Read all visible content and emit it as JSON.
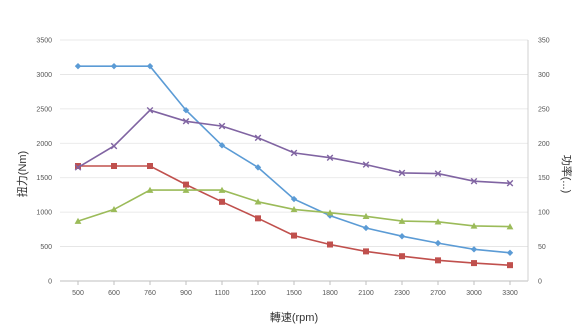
{
  "chart_data": {
    "type": "line",
    "title": "",
    "xlabel": "轉速(rpm)",
    "ylabel": "扭力(Nm)",
    "y2label": "功率(...)",
    "categories": [
      "500",
      "600",
      "760",
      "900",
      "1100",
      "1200",
      "1500",
      "1800",
      "2100",
      "2300",
      "2700",
      "3000",
      "3300"
    ],
    "ylim": [
      0,
      3500
    ],
    "y_ticks": [
      0,
      500,
      1000,
      1500,
      2000,
      2500,
      3000,
      3500
    ],
    "y2lim": [
      0,
      350
    ],
    "y2_ticks": [
      0,
      50,
      100,
      150,
      200,
      250,
      300,
      350
    ],
    "grid": "horizontal",
    "legend": "none",
    "series": [
      {
        "axis": "left",
        "color": "#5b9bd5",
        "marker": "diamond",
        "values": [
          3120,
          3120,
          3120,
          2480,
          1970,
          1650,
          1190,
          950,
          770,
          650,
          550,
          460,
          410
        ]
      },
      {
        "axis": "left",
        "color": "#c0504d",
        "marker": "square",
        "values": [
          1670,
          1670,
          1670,
          1400,
          1150,
          910,
          660,
          530,
          430,
          360,
          300,
          260,
          230
        ]
      },
      {
        "axis": "right",
        "color": "#9bbb59",
        "marker": "triangle",
        "values": [
          87,
          104,
          132,
          132,
          132,
          115,
          104,
          99,
          94,
          87,
          86,
          80,
          79
        ]
      },
      {
        "axis": "right",
        "color": "#8064a2",
        "marker": "x",
        "values": [
          165,
          196,
          248,
          232,
          225,
          208,
          186,
          179,
          169,
          157,
          156,
          145,
          142
        ]
      }
    ]
  }
}
